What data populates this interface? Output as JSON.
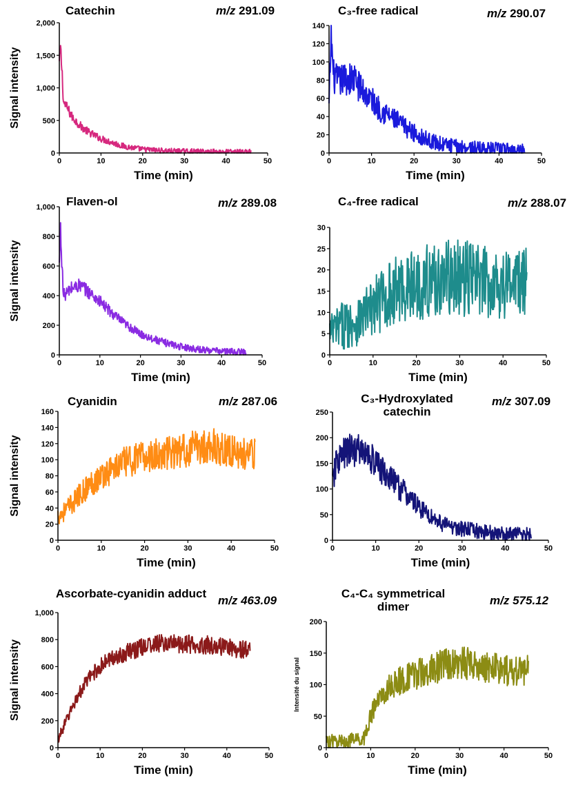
{
  "chart_data": [
    {
      "type": "line",
      "title": "Catechin",
      "mz_label": "m/z",
      "mz_value": "291.09",
      "color": "#d6287e",
      "xlabel": "Time (min)",
      "ylabel": "Signal intensity",
      "xlim": [
        0,
        50
      ],
      "ylim": [
        0,
        2000
      ],
      "xticks": [
        0,
        10,
        20,
        30,
        40,
        50
      ],
      "yticks": [
        0,
        500,
        1000,
        1500,
        2000
      ],
      "ytick_labels": [
        "0",
        "500",
        "1,000",
        "1,500",
        "2,000"
      ],
      "series": [
        {
          "x": [
            0,
            0.3,
            0.7,
            1,
            2,
            3,
            5,
            7,
            10,
            15,
            20,
            25,
            30,
            35,
            40,
            46
          ],
          "y": [
            1380,
            1600,
            1200,
            780,
            680,
            560,
            420,
            320,
            220,
            110,
            55,
            35,
            25,
            20,
            18,
            15
          ]
        }
      ]
    },
    {
      "type": "line",
      "title": "C₃-free radical",
      "mz_label": "m/z",
      "mz_value": "290.07",
      "color": "#1a1adc",
      "xlabel": "Time (min)",
      "ylabel": "",
      "xlim": [
        0,
        50
      ],
      "ylim": [
        0,
        140
      ],
      "xticks": [
        0,
        10,
        20,
        30,
        40,
        50
      ],
      "yticks": [
        0,
        20,
        40,
        60,
        80,
        100,
        120,
        140
      ],
      "series": [
        {
          "x": [
            0,
            0.5,
            1,
            2,
            4,
            6,
            8,
            10,
            12,
            15,
            18,
            20,
            23,
            26,
            30,
            35,
            40,
            46
          ],
          "y": [
            50,
            130,
            85,
            78,
            82,
            80,
            68,
            58,
            48,
            38,
            28,
            22,
            15,
            10,
            7,
            5,
            4,
            3
          ]
        }
      ]
    },
    {
      "type": "line",
      "title": "Flaven-ol",
      "mz_label": "m/z",
      "mz_value": "289.08",
      "color": "#8a2be2",
      "xlabel": "Time (min)",
      "ylabel": "Signal intensity",
      "xlim": [
        0,
        50
      ],
      "ylim": [
        0,
        1000
      ],
      "xticks": [
        0,
        10,
        20,
        30,
        40,
        50
      ],
      "yticks": [
        0,
        200,
        400,
        600,
        800,
        1000
      ],
      "ytick_labels": [
        "0",
        "200",
        "400",
        "600",
        "800",
        "1,000"
      ],
      "series": [
        {
          "x": [
            0,
            0.3,
            1,
            2,
            3,
            5,
            7,
            10,
            13,
            16,
            20,
            25,
            30,
            35,
            40,
            46
          ],
          "y": [
            600,
            840,
            400,
            420,
            450,
            470,
            430,
            360,
            280,
            210,
            140,
            90,
            55,
            35,
            25,
            18
          ]
        }
      ]
    },
    {
      "type": "line",
      "title": "C₄-free radical",
      "mz_label": "m/z",
      "mz_value": "288.07",
      "color": "#1e8c8c",
      "xlabel": "Time (min)",
      "ylabel": "",
      "xlim": [
        0,
        50
      ],
      "ylim": [
        0,
        30
      ],
      "xticks": [
        0,
        10,
        20,
        30,
        40,
        50
      ],
      "yticks": [
        0,
        5,
        10,
        15,
        20,
        25,
        30
      ],
      "series": [
        {
          "x": [
            0,
            3,
            6,
            9,
            12,
            15,
            18,
            21,
            24,
            27,
            30,
            33,
            36,
            39,
            42,
            45.5
          ],
          "y": [
            5,
            7,
            8,
            10,
            13,
            15,
            16,
            17,
            17.5,
            18,
            18,
            18,
            17,
            17,
            17,
            17
          ]
        }
      ]
    },
    {
      "type": "line",
      "title": "Cyanidin",
      "mz_label": "m/z",
      "mz_value": "287.06",
      "color": "#ff8c14",
      "xlabel": "Time (min)",
      "ylabel": "Signal intensity",
      "xlim": [
        0,
        50
      ],
      "ylim": [
        0,
        160
      ],
      "xticks": [
        0,
        10,
        20,
        30,
        40,
        50
      ],
      "yticks": [
        0,
        20,
        40,
        60,
        80,
        100,
        120,
        140,
        160
      ],
      "series": [
        {
          "x": [
            0,
            2,
            4,
            6,
            8,
            10,
            13,
            16,
            20,
            24,
            28,
            32,
            35,
            38,
            42,
            45.5
          ],
          "y": [
            30,
            38,
            50,
            62,
            72,
            80,
            90,
            98,
            103,
            107,
            110,
            115,
            118,
            114,
            108,
            105
          ]
        }
      ]
    },
    {
      "type": "line",
      "title": "C₃-Hydroxylated catechin",
      "mz_label": "m/z",
      "mz_value": "307.09",
      "color": "#141478",
      "xlabel": "Time (min)",
      "ylabel": "",
      "xlim": [
        0,
        50
      ],
      "ylim": [
        0,
        250
      ],
      "xticks": [
        0,
        10,
        20,
        30,
        40,
        50
      ],
      "yticks": [
        0,
        50,
        100,
        150,
        200,
        250
      ],
      "series": [
        {
          "x": [
            0,
            1,
            3,
            5,
            7,
            9,
            11,
            14,
            17,
            20,
            23,
            26,
            30,
            35,
            40,
            46
          ],
          "y": [
            110,
            155,
            170,
            178,
            172,
            160,
            140,
            115,
            90,
            65,
            45,
            30,
            22,
            16,
            12,
            12
          ]
        }
      ]
    },
    {
      "type": "line",
      "title": "Ascorbate-cyanidin adduct",
      "mz_label": "m/z",
      "mz_value": "463.09",
      "color": "#8b1a1a",
      "xlabel": "Time (min)",
      "ylabel": "Signal intensity",
      "xlim": [
        0,
        50
      ],
      "ylim": [
        0,
        1000
      ],
      "xticks": [
        0,
        10,
        20,
        30,
        40,
        50
      ],
      "yticks": [
        0,
        200,
        400,
        600,
        800,
        1000
      ],
      "ytick_labels": [
        "0",
        "200",
        "400",
        "600",
        "800",
        "1,000"
      ],
      "series": [
        {
          "x": [
            0,
            2,
            4,
            6,
            8,
            10,
            12,
            15,
            18,
            20,
            24,
            28,
            32,
            36,
            40,
            45.5
          ],
          "y": [
            60,
            200,
            340,
            450,
            540,
            600,
            650,
            690,
            720,
            750,
            770,
            770,
            765,
            760,
            740,
            720
          ]
        }
      ]
    },
    {
      "type": "line",
      "title": "C₄-C₄ symmetrical dimer",
      "mz_label": "m/z",
      "mz_value": "575.12",
      "color": "#8c8c14",
      "xlabel": "Time (min)",
      "ylabel": "Intensité du signal",
      "xlim": [
        0,
        50
      ],
      "ylim": [
        0,
        200
      ],
      "xticks": [
        0,
        10,
        20,
        30,
        40,
        50
      ],
      "yticks": [
        0,
        50,
        100,
        150,
        200
      ],
      "series": [
        {
          "x": [
            0,
            3,
            6,
            8.5,
            10,
            12,
            15,
            18,
            21,
            24,
            27,
            30,
            34,
            38,
            42,
            45.5
          ],
          "y": [
            10,
            10,
            12,
            15,
            50,
            80,
            100,
            110,
            118,
            125,
            132,
            135,
            132,
            125,
            120,
            125
          ]
        }
      ]
    }
  ]
}
